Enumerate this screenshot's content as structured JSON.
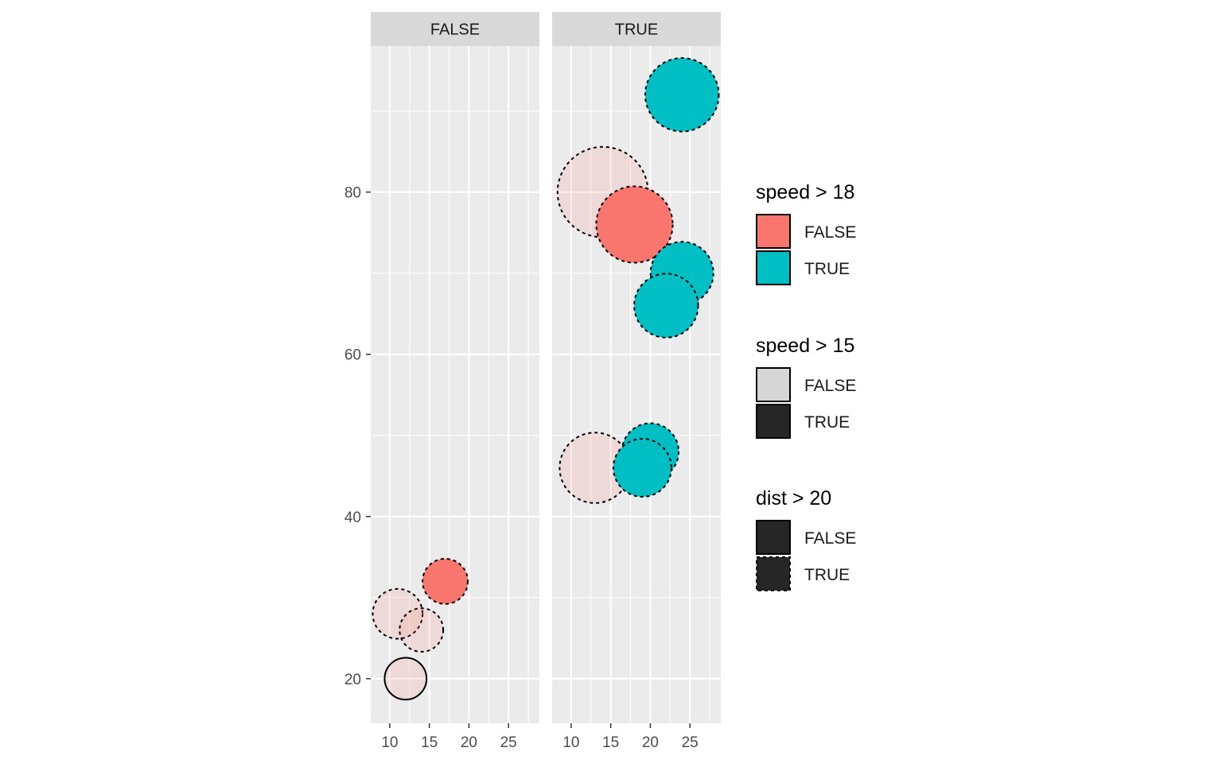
{
  "chart_data": {
    "type": "scatter",
    "facet_variable_values": [
      "FALSE",
      "TRUE"
    ],
    "x_ticks": [
      10,
      15,
      20,
      25
    ],
    "y_ticks": [
      20,
      40,
      60,
      80
    ],
    "xlim": [
      7.6,
      28.9
    ],
    "ylim": [
      14.5,
      98
    ],
    "grid": true,
    "legend_position": "right",
    "colors": {
      "FALSE": "#F8766D",
      "TRUE": "#00BFC4"
    },
    "facets": [
      {
        "label": "FALSE",
        "points": [
          {
            "x": 12,
            "y": 20,
            "size_value": 12,
            "speed_gt_18": "FALSE",
            "speed_gt_15": "FALSE",
            "dist_gt_20": "FALSE"
          },
          {
            "x": 11,
            "y": 28,
            "size_value": 17,
            "speed_gt_18": "FALSE",
            "speed_gt_15": "FALSE",
            "dist_gt_20": "TRUE"
          },
          {
            "x": 14,
            "y": 26,
            "size_value": 13,
            "speed_gt_18": "FALSE",
            "speed_gt_15": "FALSE",
            "dist_gt_20": "TRUE"
          },
          {
            "x": 17,
            "y": 32,
            "size_value": 14,
            "speed_gt_18": "FALSE",
            "speed_gt_15": "TRUE",
            "dist_gt_20": "TRUE"
          }
        ]
      },
      {
        "label": "TRUE",
        "points": [
          {
            "x": 14,
            "y": 80,
            "size_value": 56,
            "speed_gt_18": "FALSE",
            "speed_gt_15": "FALSE",
            "dist_gt_20": "TRUE"
          },
          {
            "x": 18,
            "y": 76,
            "size_value": 40,
            "speed_gt_18": "FALSE",
            "speed_gt_15": "TRUE",
            "dist_gt_20": "TRUE"
          },
          {
            "x": 24,
            "y": 92,
            "size_value": 37,
            "speed_gt_18": "TRUE",
            "speed_gt_15": "TRUE",
            "dist_gt_20": "TRUE"
          },
          {
            "x": 24,
            "y": 70,
            "size_value": 27,
            "speed_gt_18": "TRUE",
            "speed_gt_15": "TRUE",
            "dist_gt_20": "TRUE"
          },
          {
            "x": 22,
            "y": 66,
            "size_value": 28,
            "speed_gt_18": "TRUE",
            "speed_gt_15": "TRUE",
            "dist_gt_20": "TRUE"
          },
          {
            "x": 13,
            "y": 46,
            "size_value": 34,
            "speed_gt_18": "FALSE",
            "speed_gt_15": "FALSE",
            "dist_gt_20": "TRUE"
          },
          {
            "x": 20,
            "y": 48,
            "size_value": 22,
            "speed_gt_18": "TRUE",
            "speed_gt_15": "TRUE",
            "dist_gt_20": "TRUE"
          },
          {
            "x": 19,
            "y": 46,
            "size_value": 23,
            "speed_gt_18": "TRUE",
            "speed_gt_15": "TRUE",
            "dist_gt_20": "TRUE"
          }
        ]
      }
    ],
    "legends": [
      {
        "title": "speed > 18",
        "aesthetic": "fill",
        "entries": [
          {
            "label": "FALSE",
            "fill": "#F8766D",
            "linetype": "solid"
          },
          {
            "label": "TRUE",
            "fill": "#00BFC4",
            "linetype": "solid"
          }
        ]
      },
      {
        "title": "speed > 15",
        "aesthetic": "alpha",
        "entries": [
          {
            "label": "FALSE",
            "fill": "#d6d6d6",
            "linetype": "solid"
          },
          {
            "label": "TRUE",
            "fill": "#262626",
            "linetype": "solid"
          }
        ]
      },
      {
        "title": "dist > 20",
        "aesthetic": "linetype",
        "entries": [
          {
            "label": "FALSE",
            "fill": "#262626",
            "linetype": "solid"
          },
          {
            "label": "TRUE",
            "fill": "#262626",
            "linetype": "dashed"
          }
        ]
      }
    ]
  }
}
